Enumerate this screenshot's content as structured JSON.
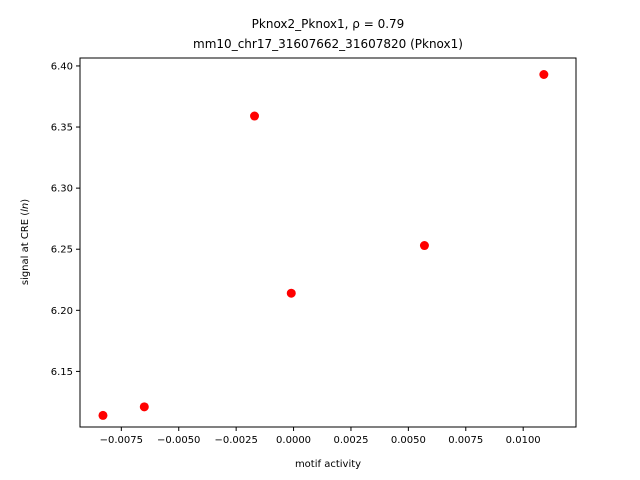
{
  "chart_data": {
    "type": "scatter",
    "title_line1": "Pknox2_Pknox1, ρ = 0.79",
    "title_line2": "mm10_chr17_31607662_31607820 (Pknox1)",
    "xlabel": "motif activity",
    "ylabel": "signal at CRE (ln)",
    "xlim": [
      -0.0093,
      0.0123
    ],
    "ylim": [
      6.1045,
      6.4065
    ],
    "xticks": [
      -0.0075,
      -0.005,
      -0.0025,
      0.0,
      0.0025,
      0.005,
      0.0075,
      0.01
    ],
    "xtick_labels": [
      "−0.0075",
      "−0.0050",
      "−0.0025",
      "0.0000",
      "0.0025",
      "0.0050",
      "0.0075",
      "0.0100"
    ],
    "yticks": [
      6.15,
      6.2,
      6.25,
      6.3,
      6.35,
      6.4
    ],
    "ytick_labels": [
      "6.15",
      "6.20",
      "6.25",
      "6.30",
      "6.35",
      "6.40"
    ],
    "grid": false,
    "marker_color": "#ff0000",
    "points": [
      {
        "x": -0.0083,
        "y": 6.114
      },
      {
        "x": -0.0065,
        "y": 6.121
      },
      {
        "x": -0.0017,
        "y": 6.359
      },
      {
        "x": -0.0001,
        "y": 6.214
      },
      {
        "x": 0.0057,
        "y": 6.253
      },
      {
        "x": 0.0109,
        "y": 6.393
      }
    ]
  }
}
